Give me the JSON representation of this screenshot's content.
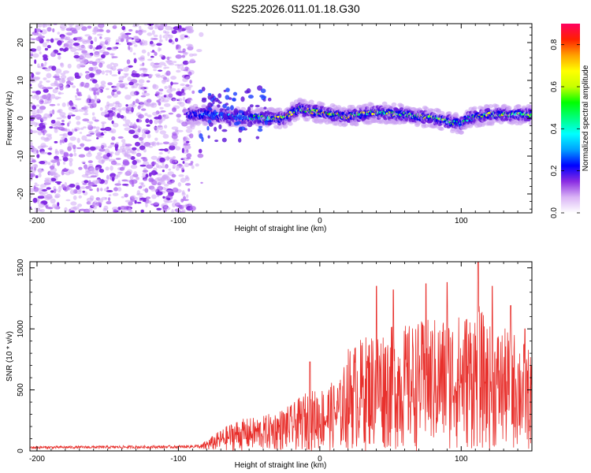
{
  "page_title": "S225.2026.011.01.18.G30",
  "colors": {
    "snr_line": "#e8302c",
    "colormap": [
      "#ffffff",
      "#d9b3f5",
      "#8a2be2",
      "#0000ff",
      "#00a0ff",
      "#00ffff",
      "#00ff80",
      "#00ff00",
      "#c8ff00",
      "#ffff00",
      "#ffa000",
      "#ff2000",
      "#ff0060"
    ]
  },
  "chart_data": [
    {
      "type": "heatmap",
      "title": "",
      "xlabel": "Height of straight line (km)",
      "ylabel": "Frequency (Hz)",
      "xlim": [
        -205,
        150
      ],
      "ylim": [
        -25,
        25
      ],
      "x_ticks": [
        -200,
        -100,
        0,
        100
      ],
      "y_ticks": [
        -20,
        -10,
        0,
        10,
        20
      ],
      "colorbar": {
        "label": "Normalized spectral amplitude",
        "range": [
          0.0,
          0.9
        ],
        "ticks": [
          0.0,
          0.2,
          0.4,
          0.6,
          0.8
        ]
      },
      "features": [
        {
          "name": "noise-region",
          "x_range": [
            -205,
            -90
          ],
          "y_range": [
            -25,
            25
          ],
          "amplitude": [
            0.05,
            0.3
          ]
        },
        {
          "name": "tone-ridge",
          "x": [
            -93,
            -80,
            -60,
            -40,
            -25,
            -15,
            0,
            20,
            40,
            60,
            80,
            100,
            105,
            120,
            150
          ],
          "freq_hz": [
            1,
            1,
            0.5,
            0,
            0,
            2.5,
            1.5,
            0.5,
            1.5,
            1,
            0,
            -1.5,
            0,
            1,
            1
          ],
          "amplitude": [
            0.2,
            0.3,
            0.4,
            0.5,
            0.7,
            0.6,
            0.7,
            0.7,
            0.65,
            0.6,
            0.6,
            0.5,
            0.55,
            0.65,
            0.6
          ]
        }
      ]
    },
    {
      "type": "line",
      "title": "",
      "xlabel": "Height of straight line (km)",
      "ylabel": "SNR (10 * v/v)",
      "xlim": [
        -205,
        150
      ],
      "ylim": [
        0,
        1550
      ],
      "x_ticks": [
        -200,
        -100,
        0,
        100
      ],
      "y_ticks": [
        0,
        500,
        1000,
        1500
      ],
      "series": [
        {
          "name": "SNR",
          "envelope_x": [
            -205,
            -100,
            -85,
            -80,
            -60,
            -40,
            -20,
            -10,
            0,
            15,
            20,
            40,
            60,
            80,
            100,
            112,
            120,
            140,
            150
          ],
          "envelope_y": [
            30,
            35,
            40,
            80,
            220,
            250,
            330,
            420,
            450,
            520,
            740,
            880,
            900,
            950,
            980,
            1050,
            900,
            850,
            700
          ],
          "peaks_x": [
            -7,
            40,
            52,
            75,
            90,
            112,
            122,
            135,
            145
          ],
          "peaks_y": [
            730,
            1350,
            1320,
            1370,
            1380,
            1560,
            1350,
            1190,
            1000
          ]
        }
      ]
    }
  ]
}
